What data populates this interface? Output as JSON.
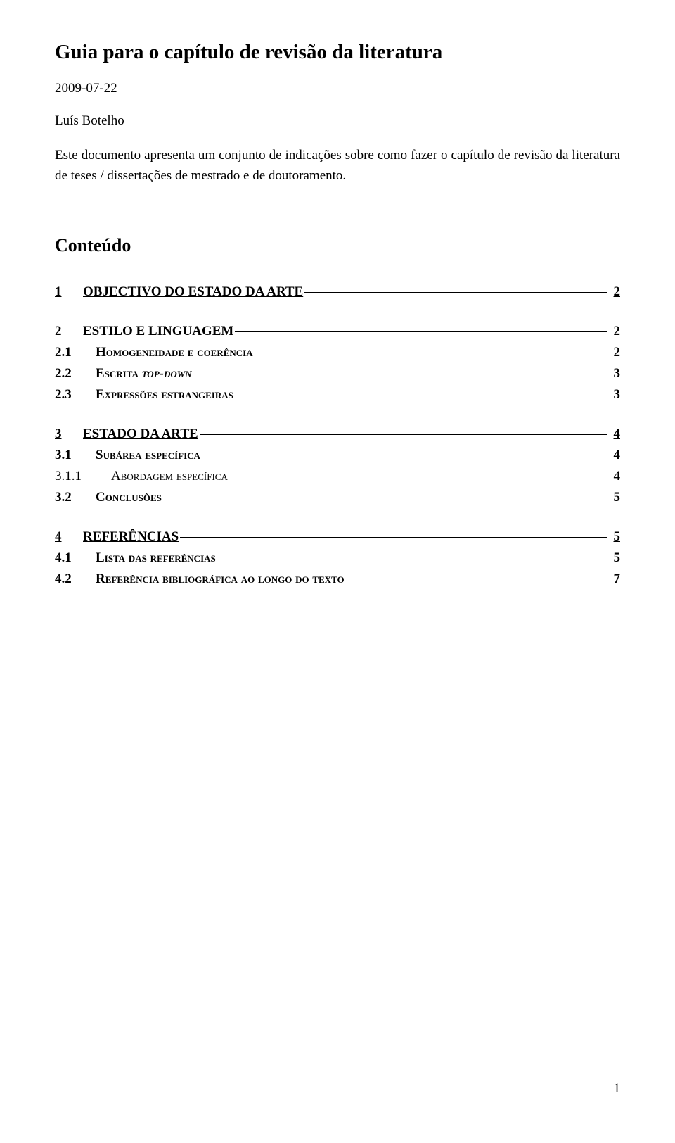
{
  "title": "Guia para o capítulo de revisão da literatura",
  "date": "2009-07-22",
  "author": "Luís Botelho",
  "intro": "Este documento apresenta um conjunto de indicações sobre como fazer o capítulo de revisão da literatura de teses / dissertações de mestrado e de doutoramento.",
  "contents_heading": "Conteúdo",
  "toc": [
    {
      "level": 1,
      "num": "1",
      "label_html": "OBJECTIVO DO ESTADO DA ARTE",
      "page": "2"
    },
    {
      "level": 1,
      "num": "2",
      "label_html": "ESTILO E LINGUAGEM",
      "page": "2"
    },
    {
      "level": 2,
      "num": "2.1",
      "label_html": "Homogeneidade e coerência",
      "page": "2"
    },
    {
      "level": 2,
      "num": "2.2",
      "label_html": "Escrita <span class=\"italic\">top-down</span>",
      "page": "3"
    },
    {
      "level": 2,
      "num": "2.3",
      "label_html": "Expressões estrangeiras",
      "page": "3"
    },
    {
      "level": 1,
      "num": "3",
      "label_html": "ESTADO DA ARTE",
      "page": "4"
    },
    {
      "level": 2,
      "num": "3.1",
      "label_html": "Subárea específica",
      "page": "4"
    },
    {
      "level": 3,
      "num": "3.1.1",
      "label_html": "Abordagem específica",
      "page": "4"
    },
    {
      "level": 2,
      "num": "3.2",
      "label_html": "Conclusões",
      "page": "5"
    },
    {
      "level": 1,
      "num": "4",
      "label_html": "REFERÊNCIAS",
      "page": "5"
    },
    {
      "level": 2,
      "num": "4.1",
      "label_html": "Lista das referências",
      "page": "5"
    },
    {
      "level": 2,
      "num": "4.2",
      "label_html": "Referência bibliográfica ao longo do texto",
      "page": "7"
    }
  ],
  "page_number": "1"
}
